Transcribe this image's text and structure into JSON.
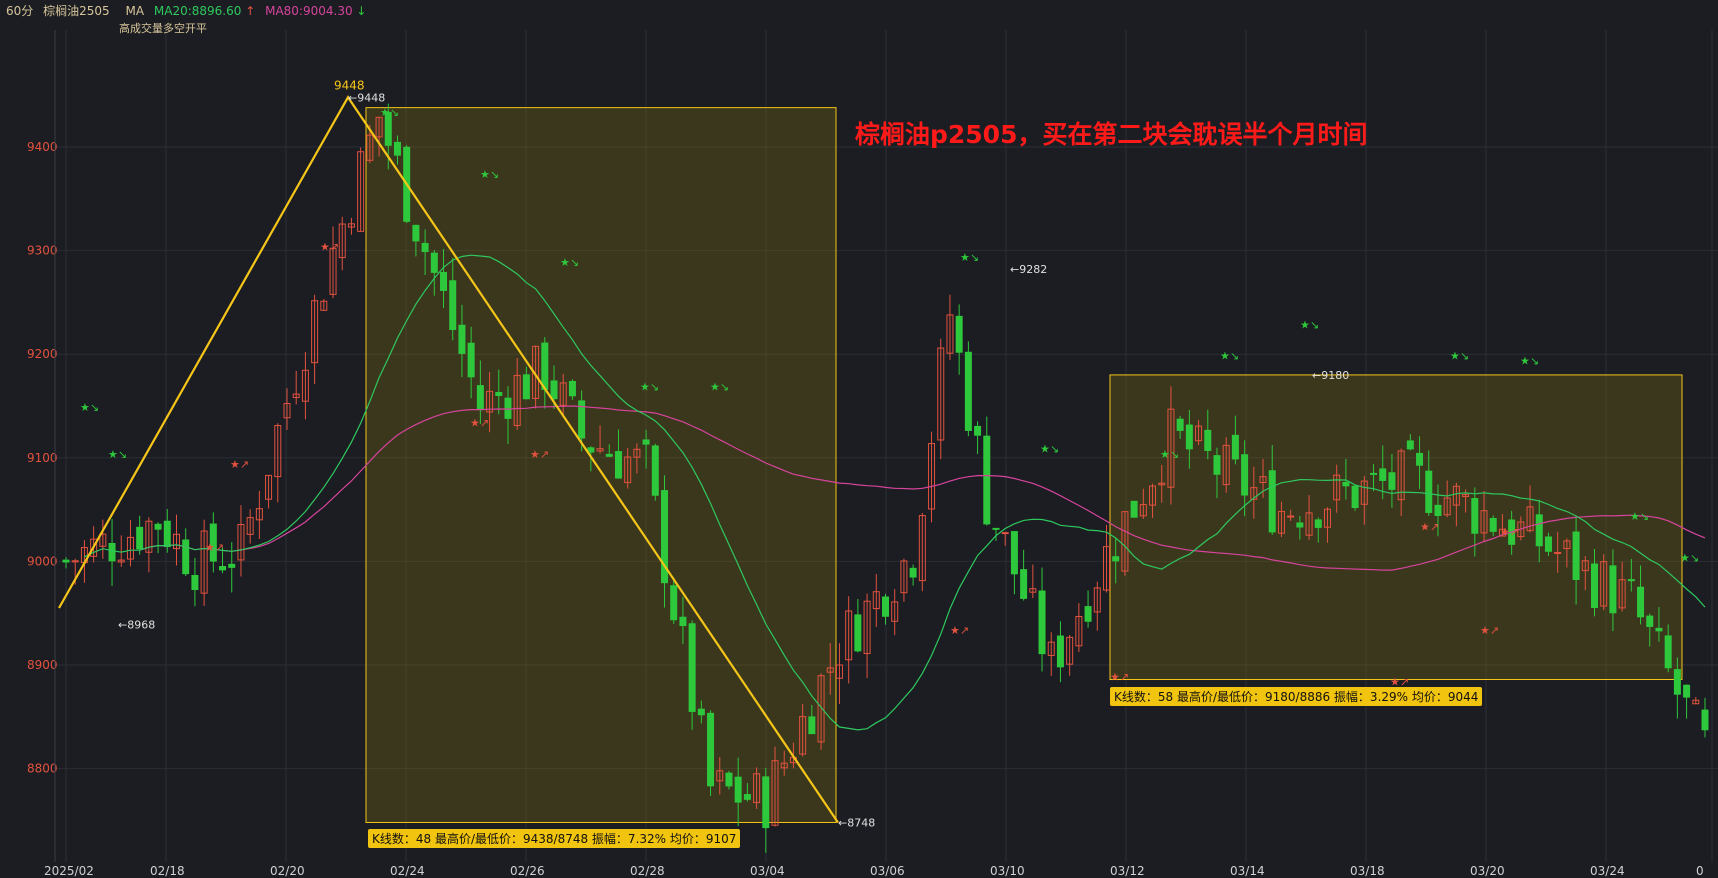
{
  "header": {
    "period": "60分",
    "symbol": "棕榈油2505",
    "ma_label": "MA",
    "ma20": "MA20:8896.60",
    "ma80": "MA80:9004.30",
    "ma20_arrow": "↑",
    "ma80_arrow": "↓",
    "subtitle": "高成交量多空开平"
  },
  "annotation": {
    "title": "棕榈油p2505，买在第二块会耽误半个月时间",
    "box1_stats": "K线数：48 最高价/最低价：9438/8748 振幅：7.32% 均价：9107",
    "box2_stats": "K线数：58 最高价/最低价：9180/8886 振幅：3.29% 均价：9044"
  },
  "colors": {
    "background": "#1b1d22",
    "up": "#e2523f",
    "down": "#2ec83c",
    "ma20": "#2ec85e",
    "ma80": "#d6449c",
    "trendline": "#f5c518",
    "box_fill": "rgba(120,105,20,0.35)",
    "axis_text": "#e2523f"
  },
  "chart_data": {
    "type": "candlestick",
    "title": "",
    "xlabel": "",
    "ylabel": "",
    "ylim": [
      8740,
      9475
    ],
    "y_ticks": [
      "9400",
      "9300",
      "9200",
      "9100",
      "9000",
      "8900",
      "8800"
    ],
    "x_ticks": [
      "2025/02",
      "02/18",
      "02/20",
      "02/24",
      "02/26",
      "02/28",
      "03/04",
      "03/06",
      "03/10",
      "03/12",
      "03/14",
      "03/18",
      "03/20",
      "03/24",
      "0"
    ],
    "price_labels": [
      {
        "text": "9448",
        "value": 9448
      },
      {
        "text": "←9448",
        "value": 9448
      },
      {
        "text": "←8968",
        "value": 8968
      },
      {
        "text": "←9282",
        "value": 9282
      },
      {
        "text": "←8748",
        "value": 8748
      },
      {
        "text": "←9180",
        "value": 9180
      }
    ],
    "key_points": {
      "start_low": 8955,
      "peak_high": 9448,
      "trough_low": 8748,
      "rebound_high": 9282,
      "range_high": 9180,
      "range_low": 8886
    },
    "box1": {
      "high": 9438,
      "low": 8748,
      "bars": 48,
      "amplitude": "7.32%",
      "average": 9107
    },
    "box2": {
      "high": 9180,
      "low": 8886,
      "bars": 58,
      "amplitude": "3.29%",
      "average": 9044
    },
    "series": [
      {
        "name": "MA20",
        "last": 8896.6
      },
      {
        "name": "MA80",
        "last": 9004.3
      }
    ]
  }
}
